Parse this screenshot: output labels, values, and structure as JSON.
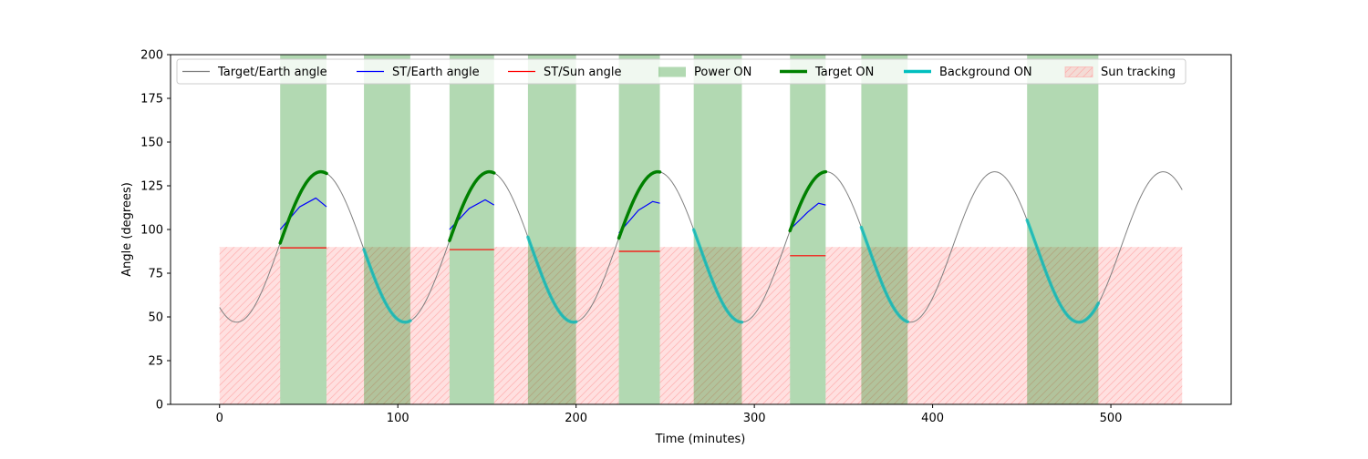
{
  "chart_data": {
    "type": "line",
    "title": "",
    "xlabel": "Time (minutes)",
    "ylabel": "Angle (degrees)",
    "xlim": [
      -27.5,
      567.5
    ],
    "ylim": [
      0,
      200
    ],
    "xticks": [
      0,
      100,
      200,
      300,
      400,
      500
    ],
    "yticks": [
      0,
      25,
      50,
      75,
      100,
      125,
      150,
      175,
      200
    ],
    "grid": false,
    "legend_position": "top",
    "colors": {
      "target_earth": "#808080",
      "st_earth": "#0000ff",
      "st_sun": "#ff0000",
      "power_on": "#008000",
      "target_on": "#008000",
      "background_on": "#00bfbf",
      "sun_tracking": "#ff9999"
    },
    "legend": [
      {
        "key": "target_earth",
        "label": "Target/Earth angle",
        "kind": "line"
      },
      {
        "key": "st_earth",
        "label": "ST/Earth angle",
        "kind": "line"
      },
      {
        "key": "st_sun",
        "label": "ST/Sun angle",
        "kind": "line"
      },
      {
        "key": "power_on",
        "label": "Power ON",
        "kind": "patch"
      },
      {
        "key": "target_on",
        "label": "Target ON",
        "kind": "thick"
      },
      {
        "key": "background_on",
        "label": "Background ON",
        "kind": "thick"
      },
      {
        "key": "sun_tracking",
        "label": "Sun tracking",
        "kind": "hatch"
      }
    ],
    "target_earth": {
      "mean": 90,
      "amplitude": 43,
      "period": 94.5,
      "phase_min": 9.6,
      "x_range": [
        0,
        540
      ]
    },
    "power_on_intervals": [
      [
        34,
        60
      ],
      [
        81,
        107
      ],
      [
        129,
        154
      ],
      [
        173,
        200
      ],
      [
        224,
        247
      ],
      [
        266,
        293
      ],
      [
        320,
        340
      ],
      [
        360,
        386
      ],
      [
        453,
        493
      ]
    ],
    "target_on_intervals": [
      [
        34,
        60
      ],
      [
        129,
        154
      ],
      [
        224,
        247
      ],
      [
        320,
        340
      ]
    ],
    "background_on_intervals": [
      [
        81,
        107
      ],
      [
        173,
        200
      ],
      [
        266,
        293
      ],
      [
        360,
        386
      ],
      [
        453,
        493
      ]
    ],
    "sun_tracking_intervals": [
      [
        0,
        34
      ],
      [
        60,
        129
      ],
      [
        154,
        224
      ],
      [
        247,
        320
      ],
      [
        340,
        540
      ]
    ],
    "sun_tracking_angle": 90,
    "st_earth_segments": [
      {
        "x": [
          34,
          45,
          54,
          60
        ],
        "y": [
          100,
          113,
          118,
          113
        ]
      },
      {
        "x": [
          129,
          140,
          149,
          154
        ],
        "y": [
          100,
          112,
          117,
          114
        ]
      },
      {
        "x": [
          224,
          235,
          243,
          247
        ],
        "y": [
          98,
          111,
          116,
          115
        ]
      },
      {
        "x": [
          320,
          330,
          336,
          340
        ],
        "y": [
          100,
          110,
          115,
          114
        ]
      }
    ],
    "st_sun_segments": [
      {
        "x": [
          34,
          60
        ],
        "y": [
          89.5,
          89.5
        ]
      },
      {
        "x": [
          129,
          154
        ],
        "y": [
          88.5,
          88.5
        ]
      },
      {
        "x": [
          224,
          247
        ],
        "y": [
          87.5,
          87.5
        ]
      },
      {
        "x": [
          320,
          340
        ],
        "y": [
          85,
          85
        ]
      }
    ]
  }
}
